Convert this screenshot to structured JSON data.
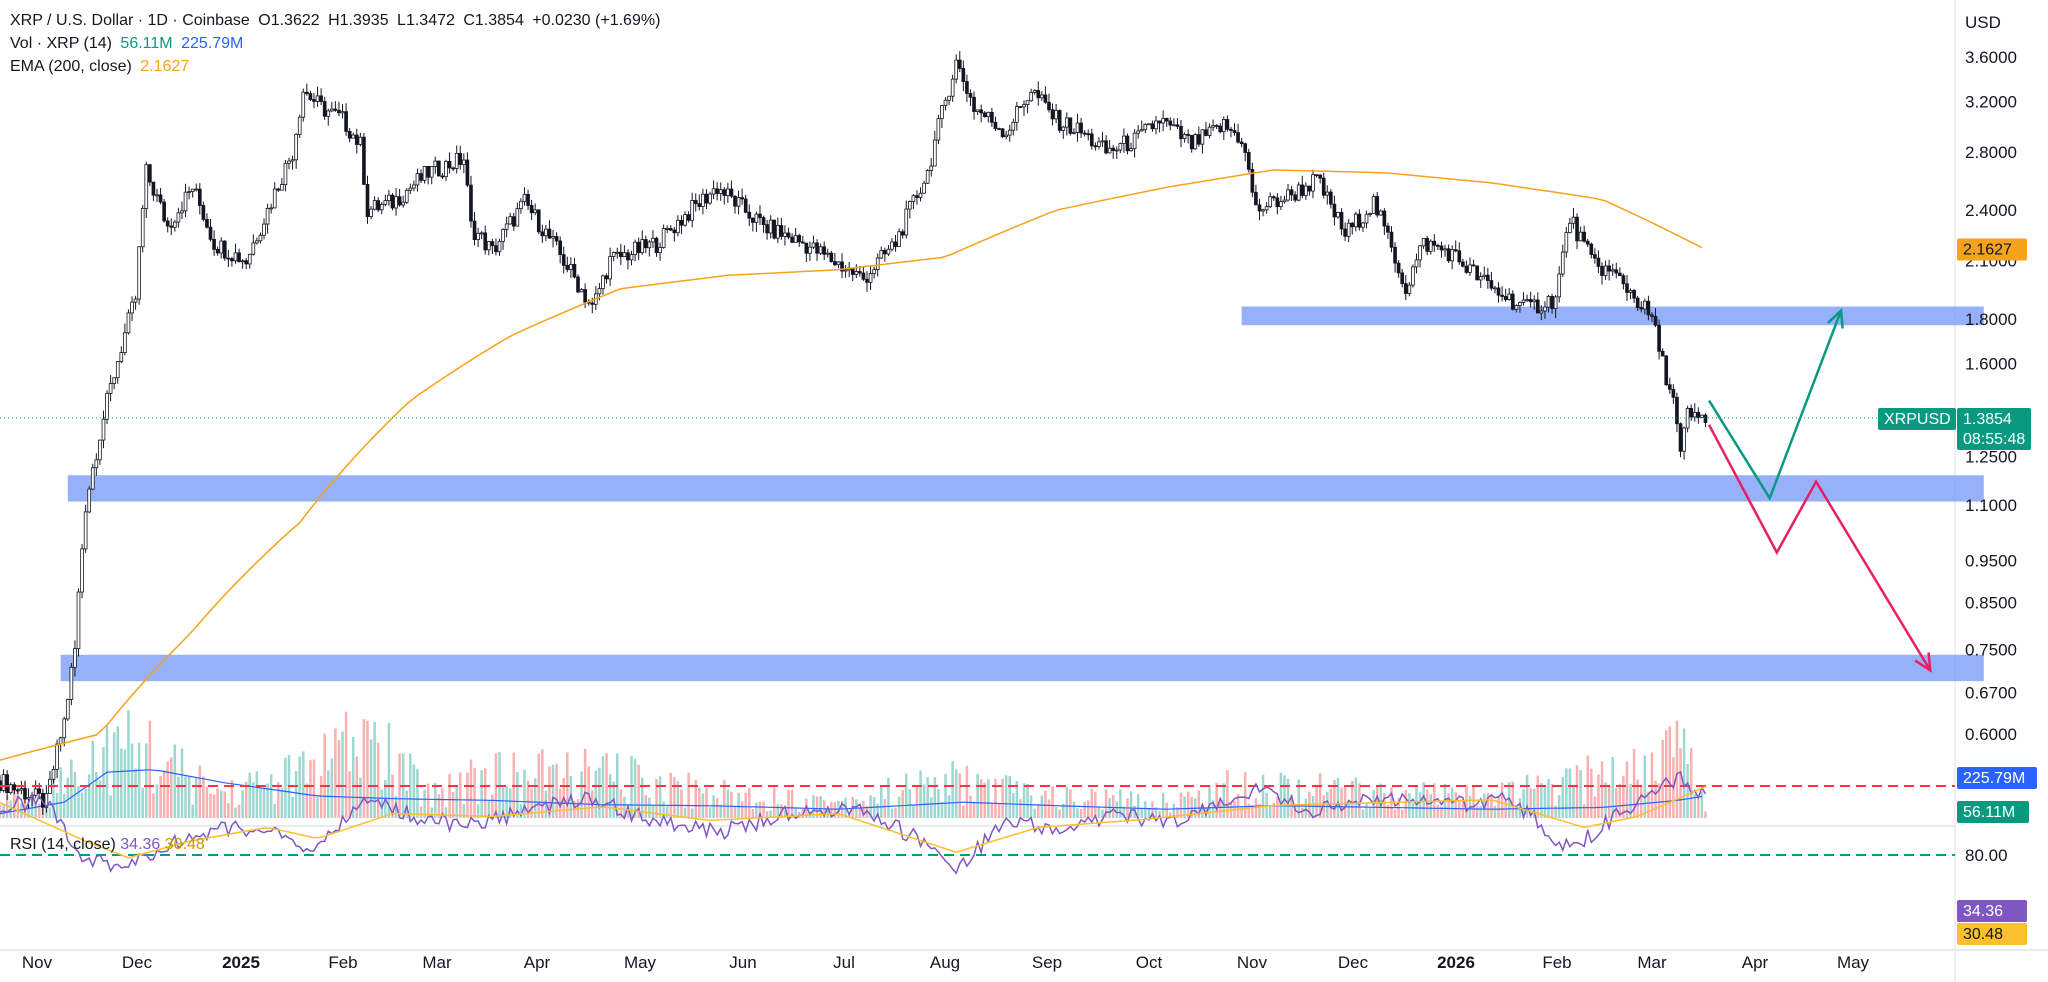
{
  "header": {
    "symbol": "XRP / U.S. Dollar · 1D · Coinbase",
    "open_label": "O",
    "open": "1.3622",
    "high_label": "H",
    "high": "1.3935",
    "low_label": "L",
    "low": "1.3472",
    "close_label": "C",
    "close": "1.3854",
    "change": "+0.0230 (+1.69%)",
    "vol_label": "Vol · XRP (14)",
    "vol_value": "56.11M",
    "vol_ma_value": "225.79M",
    "ema_label": "EMA (200, close)",
    "ema_value": "2.1627"
  },
  "currency": "USD",
  "rsi_legend": {
    "label": "RSI (14, close)",
    "rsi": "34.36",
    "ma": "30.48"
  },
  "badges": {
    "ema": "2.1627",
    "ticker": "XRPUSD",
    "price": "1.3854",
    "countdown": "08:55:48",
    "vol_ma": "225.79M",
    "vol": "56.11M",
    "rsi": "34.36",
    "rsi_ma": "30.48"
  },
  "colors": {
    "up": "#26a69a",
    "down": "#ef5350",
    "ema": "#f7a21b",
    "vol_ma": "#2962ff",
    "rsi": "#7e57c2",
    "rsi_ma": "#fbc02d",
    "zone": "#7c9ef8",
    "arrow_up": "#089981",
    "arrow_down": "#e91e63"
  },
  "chart_data": {
    "type": "candlestick",
    "title": "XRP / U.S. Dollar · 1D · Coinbase",
    "y_scale": "log",
    "y_ticks": [
      "3.6000",
      "3.2000",
      "2.8000",
      "2.4000",
      "2.1000",
      "1.8000",
      "1.6000",
      "1.2500",
      "1.1000",
      "0.9500",
      "0.8500",
      "0.7500",
      "0.6700",
      "0.6000"
    ],
    "x_ticks": [
      "Nov",
      "Dec",
      "2025",
      "Feb",
      "Mar",
      "Apr",
      "May",
      "Jun",
      "Jul",
      "Aug",
      "Sep",
      "Oct",
      "Nov",
      "Dec",
      "2026",
      "Feb",
      "Mar",
      "Apr",
      "May"
    ],
    "x_range": [
      "2024-10-23",
      "2026-05-20"
    ],
    "y_range": [
      0.54,
      3.85
    ],
    "price_series": [
      [
        "2024-10-23",
        0.53
      ],
      [
        "2024-11-05",
        0.5
      ],
      [
        "2024-11-10",
        0.62
      ],
      [
        "2024-11-13",
        0.75
      ],
      [
        "2024-11-16",
        1.1
      ],
      [
        "2024-11-23",
        1.5
      ],
      [
        "2024-11-30",
        1.9
      ],
      [
        "2024-12-03",
        2.65
      ],
      [
        "2024-12-09",
        2.3
      ],
      [
        "2024-12-16",
        2.55
      ],
      [
        "2024-12-22",
        2.2
      ],
      [
        "2024-12-31",
        2.1
      ],
      [
        "2025-01-06",
        2.4
      ],
      [
        "2025-01-13",
        2.8
      ],
      [
        "2025-01-16",
        3.3
      ],
      [
        "2025-01-21",
        3.15
      ],
      [
        "2025-01-27",
        3.05
      ],
      [
        "2025-02-01",
        2.85
      ],
      [
        "2025-02-03",
        2.4
      ],
      [
        "2025-02-10",
        2.45
      ],
      [
        "2025-02-20",
        2.65
      ],
      [
        "2025-03-02",
        2.75
      ],
      [
        "2025-03-04",
        2.3
      ],
      [
        "2025-03-10",
        2.15
      ],
      [
        "2025-03-19",
        2.45
      ],
      [
        "2025-03-30",
        2.1
      ],
      [
        "2025-04-07",
        1.85
      ],
      [
        "2025-04-12",
        2.1
      ],
      [
        "2025-04-25",
        2.2
      ],
      [
        "2025-05-12",
        2.55
      ],
      [
        "2025-05-25",
        2.3
      ],
      [
        "2025-06-05",
        2.2
      ],
      [
        "2025-06-22",
        2.0
      ],
      [
        "2025-07-01",
        2.2
      ],
      [
        "2025-07-10",
        2.65
      ],
      [
        "2025-07-18",
        3.55
      ],
      [
        "2025-07-23",
        3.15
      ],
      [
        "2025-08-01",
        2.95
      ],
      [
        "2025-08-08",
        3.3
      ],
      [
        "2025-08-15",
        3.05
      ],
      [
        "2025-08-22",
        2.95
      ],
      [
        "2025-08-29",
        2.8
      ],
      [
        "2025-09-07",
        2.9
      ],
      [
        "2025-09-13",
        3.05
      ],
      [
        "2025-09-22",
        2.85
      ],
      [
        "2025-10-01",
        3.0
      ],
      [
        "2025-10-06",
        2.9
      ],
      [
        "2025-10-10",
        2.4
      ],
      [
        "2025-10-20",
        2.5
      ],
      [
        "2025-10-27",
        2.6
      ],
      [
        "2025-11-04",
        2.25
      ],
      [
        "2025-11-12",
        2.45
      ],
      [
        "2025-11-21",
        1.95
      ],
      [
        "2025-11-26",
        2.2
      ],
      [
        "2025-12-03",
        2.15
      ],
      [
        "2025-12-15",
        1.95
      ],
      [
        "2025-12-25",
        1.85
      ],
      [
        "2026-01-02",
        1.9
      ],
      [
        "2026-01-06",
        2.35
      ],
      [
        "2026-01-12",
        2.1
      ],
      [
        "2026-01-20",
        2.0
      ],
      [
        "2026-01-29",
        1.8
      ],
      [
        "2026-02-01",
        1.6
      ],
      [
        "2026-02-04",
        1.45
      ],
      [
        "2026-02-06",
        1.25
      ],
      [
        "2026-02-08",
        1.4
      ],
      [
        "2026-02-10",
        1.38
      ],
      [
        "2026-02-13",
        1.3854
      ]
    ],
    "ema_series": [
      [
        "2024-10-23",
        0.56
      ],
      [
        "2024-11-20",
        0.6
      ],
      [
        "2024-12-15",
        0.78
      ],
      [
        "2025-01-15",
        1.05
      ],
      [
        "2025-02-15",
        1.45
      ],
      [
        "2025-03-15",
        1.72
      ],
      [
        "2025-04-15",
        1.95
      ],
      [
        "2025-05-15",
        2.02
      ],
      [
        "2025-06-15",
        2.05
      ],
      [
        "2025-07-15",
        2.12
      ],
      [
        "2025-08-15",
        2.4
      ],
      [
        "2025-09-15",
        2.55
      ],
      [
        "2025-10-15",
        2.67
      ],
      [
        "2025-11-15",
        2.65
      ],
      [
        "2025-12-15",
        2.58
      ],
      [
        "2026-01-15",
        2.47
      ],
      [
        "2026-02-13",
        2.1627
      ]
    ],
    "zones": [
      {
        "from": "2025-10-06",
        "to": "2026-05-02",
        "low": 1.77,
        "high": 1.86
      },
      {
        "from": "2024-11-11",
        "to": "2026-05-02",
        "low": 1.11,
        "high": 1.19
      },
      {
        "from": "2024-11-09",
        "to": "2026-05-02",
        "low": 0.69,
        "high": 0.74
      }
    ],
    "scenarios": [
      {
        "name": "bullish",
        "points": [
          [
            "2026-02-14",
            1.45
          ],
          [
            "2026-03-03",
            1.12
          ],
          [
            "2026-03-23",
            1.84
          ]
        ]
      },
      {
        "name": "bearish",
        "points": [
          [
            "2026-02-14",
            1.36
          ],
          [
            "2026-03-05",
            0.97
          ],
          [
            "2026-03-16",
            1.17
          ],
          [
            "2026-04-17",
            0.71
          ]
        ]
      }
    ],
    "rsi": {
      "label": "RSI (14, close)",
      "overbought": 80,
      "oversold": 30,
      "y_ticks": [
        "80.00"
      ],
      "series": [
        [
          "2024-10-23",
          45
        ],
        [
          "2024-11-05",
          40
        ],
        [
          "2024-11-16",
          85
        ],
        [
          "2024-11-28",
          88
        ],
        [
          "2024-12-10",
          72
        ],
        [
          "2024-12-25",
          60
        ],
        [
          "2025-01-06",
          62
        ],
        [
          "2025-01-18",
          78
        ],
        [
          "2025-02-03",
          40
        ],
        [
          "2025-02-20",
          55
        ],
        [
          "2025-03-05",
          58
        ],
        [
          "2025-03-20",
          48
        ],
        [
          "2025-04-07",
          38
        ],
        [
          "2025-04-20",
          52
        ],
        [
          "2025-05-12",
          64
        ],
        [
          "2025-06-01",
          50
        ],
        [
          "2025-06-20",
          45
        ],
        [
          "2025-07-10",
          72
        ],
        [
          "2025-07-18",
          92
        ],
        [
          "2025-08-01",
          55
        ],
        [
          "2025-08-15",
          62
        ],
        [
          "2025-09-01",
          50
        ],
        [
          "2025-09-15",
          58
        ],
        [
          "2025-10-10",
          32
        ],
        [
          "2025-10-25",
          48
        ],
        [
          "2025-11-15",
          38
        ],
        [
          "2025-12-01",
          45
        ],
        [
          "2025-12-20",
          38
        ],
        [
          "2026-01-06",
          76
        ],
        [
          "2026-01-20",
          50
        ],
        [
          "2026-02-06",
          22
        ],
        [
          "2026-02-10",
          38
        ],
        [
          "2026-02-13",
          34.36
        ]
      ],
      "ma_series": [
        [
          "2024-10-23",
          42
        ],
        [
          "2024-11-16",
          70
        ],
        [
          "2024-11-28",
          82
        ],
        [
          "2024-12-15",
          70
        ],
        [
          "2025-01-06",
          60
        ],
        [
          "2025-01-20",
          68
        ],
        [
          "2025-02-10",
          50
        ],
        [
          "2025-03-10",
          52
        ],
        [
          "2025-04-10",
          45
        ],
        [
          "2025-05-10",
          55
        ],
        [
          "2025-06-15",
          50
        ],
        [
          "2025-07-18",
          78
        ],
        [
          "2025-08-10",
          60
        ],
        [
          "2025-09-10",
          54
        ],
        [
          "2025-10-15",
          44
        ],
        [
          "2025-11-15",
          42
        ],
        [
          "2025-12-15",
          40
        ],
        [
          "2026-01-10",
          60
        ],
        [
          "2026-01-25",
          52
        ],
        [
          "2026-02-13",
          30.48
        ]
      ]
    },
    "volume": {
      "ma_label": "225.79M",
      "series": [
        [
          "2024-10-23",
          0.2
        ],
        [
          "2024-11-10",
          0.45
        ],
        [
          "2024-11-16",
          0.7
        ],
        [
          "2024-11-22",
          0.8
        ],
        [
          "2024-12-03",
          0.85
        ],
        [
          "2024-12-12",
          0.55
        ],
        [
          "2024-12-25",
          0.3
        ],
        [
          "2025-01-16",
          0.55
        ],
        [
          "2025-02-03",
          0.95
        ],
        [
          "2025-02-20",
          0.3
        ],
        [
          "2025-03-03",
          0.5
        ],
        [
          "2025-04-07",
          0.55
        ],
        [
          "2025-05-12",
          0.3
        ],
        [
          "2025-06-15",
          0.2
        ],
        [
          "2025-07-18",
          0.45
        ],
        [
          "2025-08-15",
          0.25
        ],
        [
          "2025-09-15",
          0.2
        ],
        [
          "2025-10-10",
          0.45
        ],
        [
          "2025-11-10",
          0.3
        ],
        [
          "2025-12-10",
          0.25
        ],
        [
          "2026-01-06",
          0.4
        ],
        [
          "2026-02-06",
          0.85
        ],
        [
          "2026-02-13",
          0.2
        ]
      ],
      "ma_series": [
        [
          "2024-10-23",
          0.05
        ],
        [
          "2024-11-10",
          0.18
        ],
        [
          "2024-11-22",
          0.52
        ],
        [
          "2024-12-05",
          0.55
        ],
        [
          "2024-12-25",
          0.4
        ],
        [
          "2025-01-20",
          0.25
        ],
        [
          "2025-02-10",
          0.22
        ],
        [
          "2025-03-10",
          0.2
        ],
        [
          "2025-04-10",
          0.15
        ],
        [
          "2025-05-10",
          0.14
        ],
        [
          "2025-06-15",
          0.1
        ],
        [
          "2025-07-20",
          0.18
        ],
        [
          "2025-08-15",
          0.14
        ],
        [
          "2025-09-15",
          0.1
        ],
        [
          "2025-10-15",
          0.14
        ],
        [
          "2025-11-15",
          0.12
        ],
        [
          "2025-12-15",
          0.1
        ],
        [
          "2026-01-15",
          0.12
        ],
        [
          "2026-02-05",
          0.2
        ],
        [
          "2026-02-13",
          0.25
        ]
      ]
    }
  }
}
